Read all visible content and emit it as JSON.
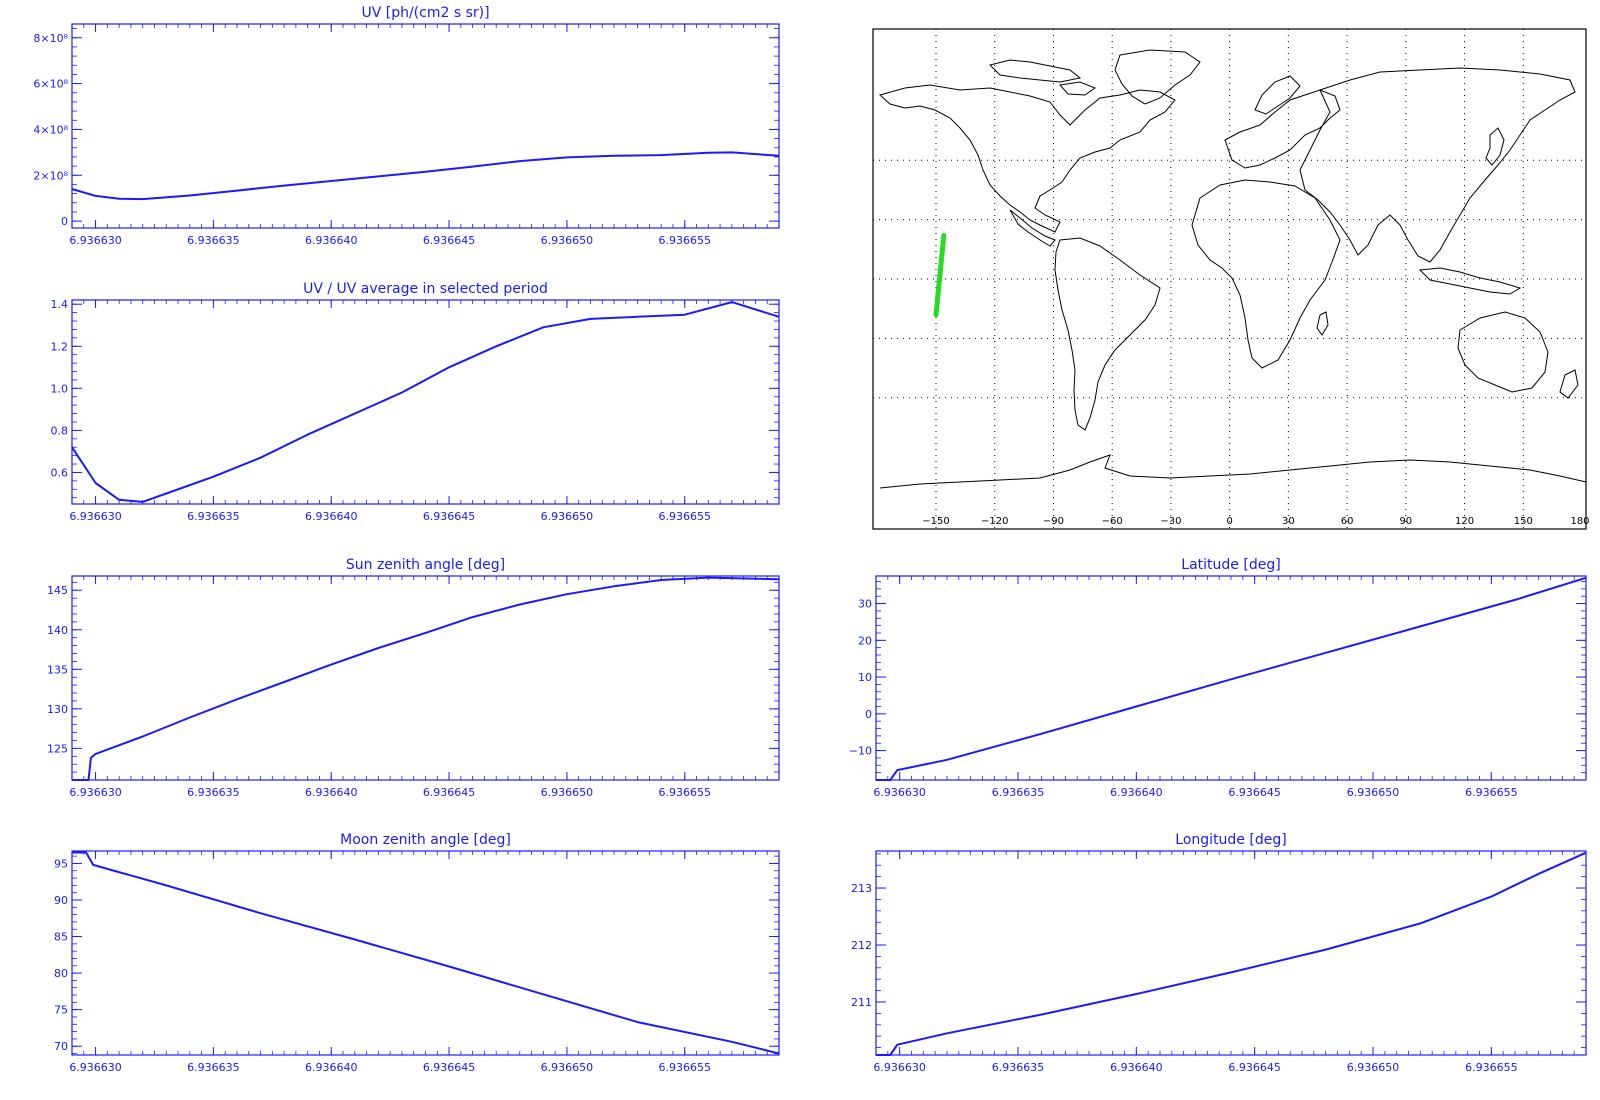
{
  "chart_data": [
    {
      "id": "uv",
      "type": "line",
      "title": "UV [ph/(cm2 s sr)]",
      "xlim": [
        6.936629,
        6.936659
      ],
      "ylim": [
        -30000000.0,
        860000000.0
      ],
      "x_ticks": [
        "6.936630",
        "6.936635",
        "6.936640",
        "6.936645",
        "6.936650",
        "6.936655"
      ],
      "y_ticks": [
        {
          "value": 0,
          "label": "0"
        },
        {
          "value": 200000000.0,
          "label": "2×10⁸"
        },
        {
          "value": 400000000.0,
          "label": "4×10⁸"
        },
        {
          "value": 600000000.0,
          "label": "6×10⁸"
        },
        {
          "value": 800000000.0,
          "label": "8×10⁸"
        }
      ],
      "series": [
        {
          "color": "#1a1aff",
          "x": [
            6.936629,
            6.93663,
            6.936631,
            6.936632,
            6.936634,
            6.936636,
            6.936638,
            6.93664,
            6.936642,
            6.936644,
            6.936646,
            6.936648,
            6.93665,
            6.936652,
            6.936654,
            6.936656,
            6.936657,
            6.936659
          ],
          "y": [
            140000000.0,
            110000000.0,
            98000000.0,
            96000000.0,
            112000000.0,
            133000000.0,
            155000000.0,
            175000000.0,
            195000000.0,
            215000000.0,
            238000000.0,
            262000000.0,
            278000000.0,
            285000000.0,
            288000000.0,
            298000000.0,
            300000000.0,
            285000000.0
          ]
        }
      ]
    },
    {
      "id": "uv-ratio",
      "type": "line",
      "title": "UV / UV average in selected period",
      "xlim": [
        6.936629,
        6.936659
      ],
      "ylim": [
        0.45,
        1.42
      ],
      "x_ticks": [
        "6.936630",
        "6.936635",
        "6.936640",
        "6.936645",
        "6.936650",
        "6.936655"
      ],
      "y_ticks": [
        {
          "value": 0.6,
          "label": "0.6"
        },
        {
          "value": 0.8,
          "label": "0.8"
        },
        {
          "value": 1.0,
          "label": "1.0"
        },
        {
          "value": 1.2,
          "label": "1.2"
        },
        {
          "value": 1.4,
          "label": "1.4"
        }
      ],
      "series": [
        {
          "color": "#1a1aff",
          "x": [
            6.936629,
            6.93663,
            6.936631,
            6.936632,
            6.936633,
            6.936635,
            6.936637,
            6.936639,
            6.936641,
            6.936643,
            6.936645,
            6.936647,
            6.936649,
            6.936651,
            6.936653,
            6.936655,
            6.936657,
            6.936659
          ],
          "y": [
            0.72,
            0.55,
            0.47,
            0.46,
            0.5,
            0.58,
            0.67,
            0.78,
            0.88,
            0.98,
            1.1,
            1.2,
            1.29,
            1.33,
            1.34,
            1.35,
            1.41,
            1.34
          ]
        }
      ]
    },
    {
      "id": "sun-zenith",
      "type": "line",
      "title": "Sun zenith angle [deg]",
      "xlim": [
        6.936629,
        6.936659
      ],
      "ylim": [
        121,
        146.8
      ],
      "x_ticks": [
        "6.936630",
        "6.936635",
        "6.936640",
        "6.936645",
        "6.936650",
        "6.936655"
      ],
      "y_ticks": [
        {
          "value": 125,
          "label": "125"
        },
        {
          "value": 130,
          "label": "130"
        },
        {
          "value": 135,
          "label": "135"
        },
        {
          "value": 140,
          "label": "140"
        },
        {
          "value": 145,
          "label": "145"
        }
      ],
      "series": [
        {
          "color": "#1a1aff",
          "x": [
            6.936629,
            6.9366297,
            6.9366298,
            6.93663,
            6.936632,
            6.936634,
            6.936636,
            6.936638,
            6.93664,
            6.936642,
            6.936644,
            6.936646,
            6.936648,
            6.93665,
            6.936652,
            6.936654,
            6.936656,
            6.936659
          ],
          "y": [
            121,
            121,
            123.8,
            124.3,
            126.5,
            128.9,
            131.2,
            133.4,
            135.6,
            137.7,
            139.6,
            141.6,
            143.2,
            144.5,
            145.5,
            146.3,
            146.6,
            146.4
          ]
        }
      ]
    },
    {
      "id": "latitude",
      "type": "line",
      "title": "Latitude [deg]",
      "xlim": [
        6.936629,
        6.936659
      ],
      "ylim": [
        -18,
        37.5
      ],
      "x_ticks": [
        "6.936630",
        "6.936635",
        "6.936640",
        "6.936645",
        "6.936650",
        "6.936655"
      ],
      "y_ticks": [
        {
          "value": -10,
          "label": "−10"
        },
        {
          "value": 0,
          "label": "0"
        },
        {
          "value": 10,
          "label": "10"
        },
        {
          "value": 20,
          "label": "20"
        },
        {
          "value": 30,
          "label": "30"
        }
      ],
      "series": [
        {
          "color": "#1a1aff",
          "x": [
            6.936629,
            6.9366296,
            6.9366299,
            6.936632,
            6.936636,
            6.93664,
            6.936644,
            6.936648,
            6.936652,
            6.936656,
            6.936659
          ],
          "y": [
            -18,
            -18,
            -15.3,
            -12.5,
            -5.4,
            2.0,
            9.4,
            16.6,
            23.8,
            31.0,
            37.0
          ]
        }
      ]
    },
    {
      "id": "moon-zenith",
      "type": "line",
      "title": "Moon zenith angle [deg]",
      "xlim": [
        6.936629,
        6.936659
      ],
      "ylim": [
        68.8,
        96.7
      ],
      "x_ticks": [
        "6.936630",
        "6.936635",
        "6.936640",
        "6.936645",
        "6.936650",
        "6.936655"
      ],
      "y_ticks": [
        {
          "value": 70,
          "label": "70"
        },
        {
          "value": 75,
          "label": "75"
        },
        {
          "value": 80,
          "label": "80"
        },
        {
          "value": 85,
          "label": "85"
        },
        {
          "value": 90,
          "label": "90"
        },
        {
          "value": 95,
          "label": "95"
        }
      ],
      "series": [
        {
          "color": "#1a1aff",
          "x": [
            6.936629,
            6.9366296,
            6.9366299,
            6.936633,
            6.936637,
            6.936641,
            6.936645,
            6.936649,
            6.936653,
            6.936657,
            6.936659
          ],
          "y": [
            96.5,
            96.5,
            94.8,
            92.0,
            88.2,
            84.6,
            80.9,
            77.1,
            73.3,
            70.6,
            69.0
          ]
        }
      ]
    },
    {
      "id": "longitude",
      "type": "line",
      "title": "Longitude [deg]",
      "xlim": [
        6.936629,
        6.936659
      ],
      "ylim": [
        210.07,
        213.65
      ],
      "x_ticks": [
        "6.936630",
        "6.936635",
        "6.936640",
        "6.936645",
        "6.936650",
        "6.936655"
      ],
      "y_ticks": [
        {
          "value": 211,
          "label": "211"
        },
        {
          "value": 212,
          "label": "212"
        },
        {
          "value": 213,
          "label": "213"
        }
      ],
      "series": [
        {
          "color": "#1a1aff",
          "x": [
            6.936629,
            6.9366296,
            6.9366299,
            6.936632,
            6.936636,
            6.93664,
            6.936644,
            6.936648,
            6.936652,
            6.936655,
            6.936657,
            6.936659
          ],
          "y": [
            210.07,
            210.07,
            210.25,
            210.45,
            210.78,
            211.14,
            211.52,
            211.92,
            212.38,
            212.85,
            213.25,
            213.62
          ]
        }
      ]
    }
  ],
  "map": {
    "type": "map",
    "x_ticks": [
      "−150",
      "−120",
      "−90",
      "−60",
      "−30",
      "0",
      "30",
      "60",
      "90",
      "120",
      "150",
      "180"
    ],
    "track_color": "#22dd22",
    "track": {
      "lon": [
        -146,
        -150
      ],
      "lat": [
        22,
        -18
      ]
    }
  }
}
